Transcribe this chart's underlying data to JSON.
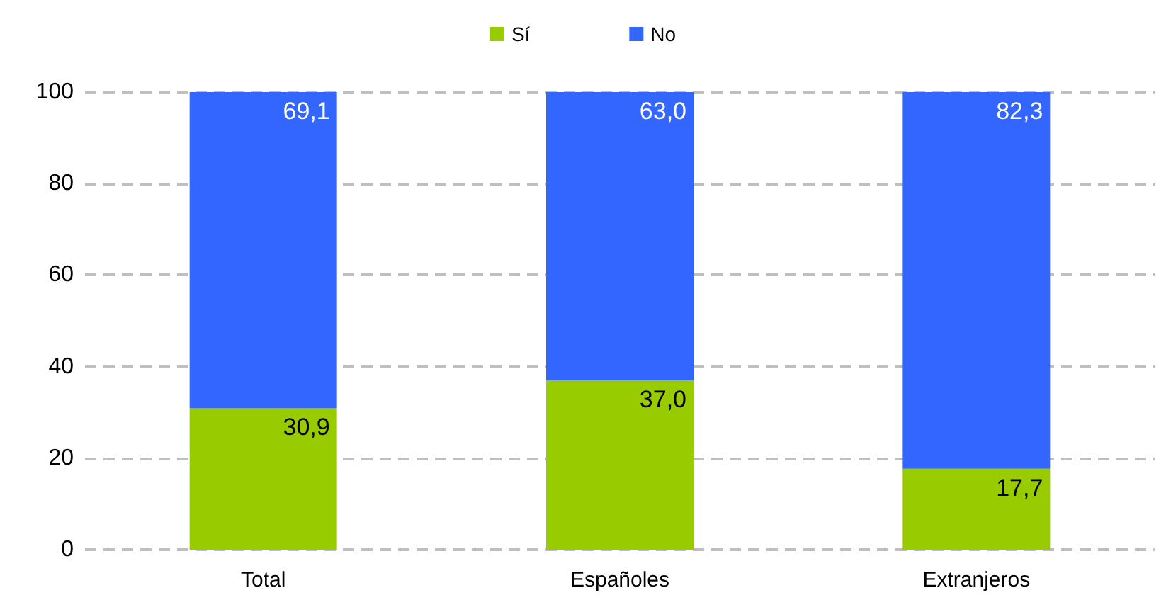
{
  "chart_data": {
    "type": "bar",
    "stacked": true,
    "categories": [
      "Total",
      "Españoles",
      "Extranjeros"
    ],
    "series": [
      {
        "name": "Sí",
        "color": "#99cc00",
        "values": [
          30.9,
          37.0,
          17.7
        ],
        "value_labels": [
          "30,9",
          "37,0",
          "17,7"
        ]
      },
      {
        "name": "No",
        "color": "#3366ff",
        "values": [
          69.1,
          63.0,
          82.3
        ],
        "value_labels": [
          "69,1",
          "63,0",
          "82,3"
        ]
      }
    ],
    "ylim": [
      0,
      100
    ],
    "yticks": [
      0,
      20,
      40,
      60,
      80,
      100
    ],
    "grid": "y",
    "legend": "top"
  }
}
